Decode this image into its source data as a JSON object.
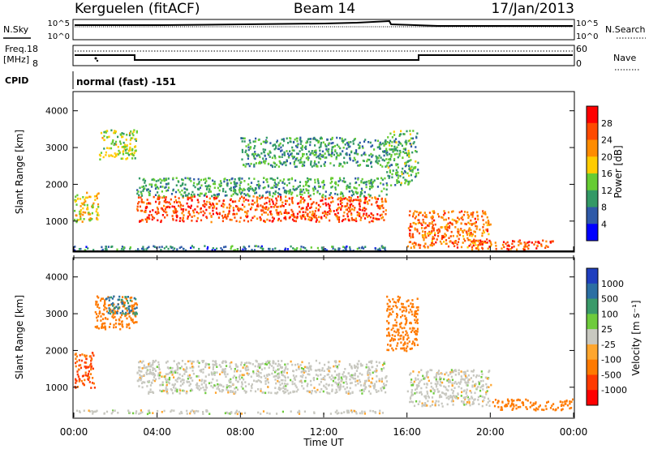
{
  "header": {
    "radar": "Kerguelen (fitACF)",
    "beam": "Beam 14",
    "date": "17/Jan/2013"
  },
  "sky_panel": {
    "left_label": "N.Sky",
    "right_label": "N.Search",
    "left_ticks": [
      "10^5",
      "10^0"
    ],
    "right_ticks": [
      "10^5",
      "10^0"
    ]
  },
  "freq_panel": {
    "left_label": "Freq.",
    "left_unit": "[MHz]",
    "right_label": "Nave",
    "left_ticks": [
      "18",
      "8"
    ],
    "right_ticks": [
      "60",
      "0"
    ]
  },
  "cpid": {
    "label": "CPID",
    "mode": "normal (fast) -151"
  },
  "range_axis": {
    "label": "Slant Range [km]",
    "ticks": [
      1000,
      2000,
      3000,
      4000
    ]
  },
  "time_axis": {
    "label": "Time UT",
    "ticks": [
      "00:00",
      "04:00",
      "08:00",
      "12:00",
      "16:00",
      "20:00",
      "00:00"
    ]
  },
  "power_colorbar": {
    "label": "Power [dB]",
    "ticks": [
      "28",
      "24",
      "20",
      "16",
      "12",
      "8",
      "4"
    ],
    "colors": [
      "#ff0000",
      "#ff4a00",
      "#ff8c00",
      "#ffcc00",
      "#66cc33",
      "#339966",
      "#2f5aa8",
      "#0000ff"
    ]
  },
  "velocity_colorbar": {
    "label": "Velocity [m s⁻¹]",
    "ticks": [
      "1000",
      "500",
      "100",
      "25",
      "-25",
      "-100",
      "-500",
      "-1000"
    ],
    "colors": [
      "#1f3fbf",
      "#2b6fa3",
      "#3a9a6a",
      "#6ecb3c",
      "#c8c8c0",
      "#ffa62e",
      "#ff7a00",
      "#ff3a00",
      "#ff0000"
    ]
  },
  "chart_data": {
    "type": "heatmap",
    "title": "Kerguelen (fitACF) Beam 14 17/Jan/2013",
    "xlabel": "Time UT",
    "ylabel": "Slant Range [km]",
    "x_range": [
      "00:00",
      "24:00"
    ],
    "y_range": [
      180,
      4500
    ],
    "panels": [
      {
        "name": "Power [dB]",
        "cbar_range": [
          0,
          32
        ],
        "cbar_ticks": [
          4,
          8,
          12,
          16,
          20,
          24,
          28
        ],
        "regions": [
          {
            "t": [
              0.0,
              1.2
            ],
            "r": [
              1000,
              1800
            ],
            "v": 18
          },
          {
            "t": [
              1.2,
              3.0
            ],
            "r": [
              2700,
              3500
            ],
            "v": 16
          },
          {
            "t": [
              3.0,
              15.0
            ],
            "r": [
              1000,
              1700
            ],
            "v": 26
          },
          {
            "t": [
              3.0,
              15.0
            ],
            "r": [
              1700,
              2200
            ],
            "v": 11
          },
          {
            "t": [
              8.0,
              15.0
            ],
            "r": [
              2500,
              3300
            ],
            "v": 10
          },
          {
            "t": [
              15.0,
              16.5
            ],
            "r": [
              2000,
              3500
            ],
            "v": 12
          },
          {
            "t": [
              16.0,
              20.0
            ],
            "r": [
              300,
              1300
            ],
            "v": 24
          },
          {
            "t": [
              19.0,
              23.0
            ],
            "r": [
              250,
              500
            ],
            "v": 26
          },
          {
            "t": [
              0.0,
              15.0
            ],
            "r": [
              200,
              350
            ],
            "v": 8
          }
        ]
      },
      {
        "name": "Velocity [m s⁻¹]",
        "cbar_range": [
          -1000,
          1000
        ],
        "cbar_ticks": [
          1000,
          500,
          100,
          25,
          -25,
          -100,
          -500,
          -1000
        ],
        "regions": [
          {
            "t": [
              0.0,
              1.0
            ],
            "r": [
              1000,
              2000
            ],
            "v": -500
          },
          {
            "t": [
              1.0,
              3.0
            ],
            "r": [
              2600,
              3500
            ],
            "v": -150
          },
          {
            "t": [
              1.5,
              3.0
            ],
            "r": [
              3000,
              3500
            ],
            "v": 500
          },
          {
            "t": [
              3.0,
              15.0
            ],
            "r": [
              850,
              1750
            ],
            "v": 0
          },
          {
            "t": [
              15.0,
              16.5
            ],
            "r": [
              2000,
              3500
            ],
            "v": -200
          },
          {
            "t": [
              16.0,
              20.0
            ],
            "r": [
              500,
              1500
            ],
            "v": 0
          },
          {
            "t": [
              20.0,
              24.0
            ],
            "r": [
              400,
              700
            ],
            "v": -300
          },
          {
            "t": [
              0.0,
              15.0
            ],
            "r": [
              300,
              400
            ],
            "v": 0
          }
        ]
      }
    ],
    "n_sky": {
      "level": "10^5",
      "baseline": "10^5"
    },
    "frequency_mhz": [
      {
        "t": [
          0.0,
          3.0
        ],
        "v": 12
      },
      {
        "t": [
          3.0,
          17.0
        ],
        "v": 10.5
      },
      {
        "t": [
          17.0,
          24.0
        ],
        "v": 12
      }
    ],
    "nave": {
      "dotted_level": 55
    }
  }
}
